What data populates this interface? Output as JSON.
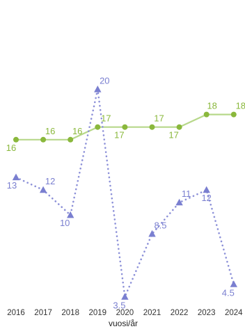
{
  "chart_data": {
    "type": "line",
    "xlabel": "vuosi/år",
    "ylabel": "",
    "categories": [
      "2016",
      "2017",
      "2018",
      "2019",
      "2020",
      "2021",
      "2022",
      "2023",
      "2024"
    ],
    "ylim": [
      0,
      26
    ],
    "grid": false,
    "series": [
      {
        "values": [
          16,
          16,
          16,
          17,
          17,
          17,
          17,
          18,
          18
        ],
        "labels": [
          "16",
          "16",
          "16",
          "17",
          "17",
          "17",
          "17",
          "18",
          "18"
        ],
        "color": "#8ab83c",
        "line_color": "#b7d88a",
        "line_style": "solid",
        "marker": "circle"
      },
      {
        "values": [
          13,
          12,
          10,
          20,
          3.5,
          8.5,
          11,
          12,
          4.5
        ],
        "labels": [
          "13",
          "12",
          "10",
          "20",
          "3.5",
          "8.5",
          "11",
          "12",
          "4.5"
        ],
        "color": "#7a7fd0",
        "line_color": "#8c90d8",
        "line_style": "dotted",
        "marker": "triangle"
      }
    ]
  }
}
